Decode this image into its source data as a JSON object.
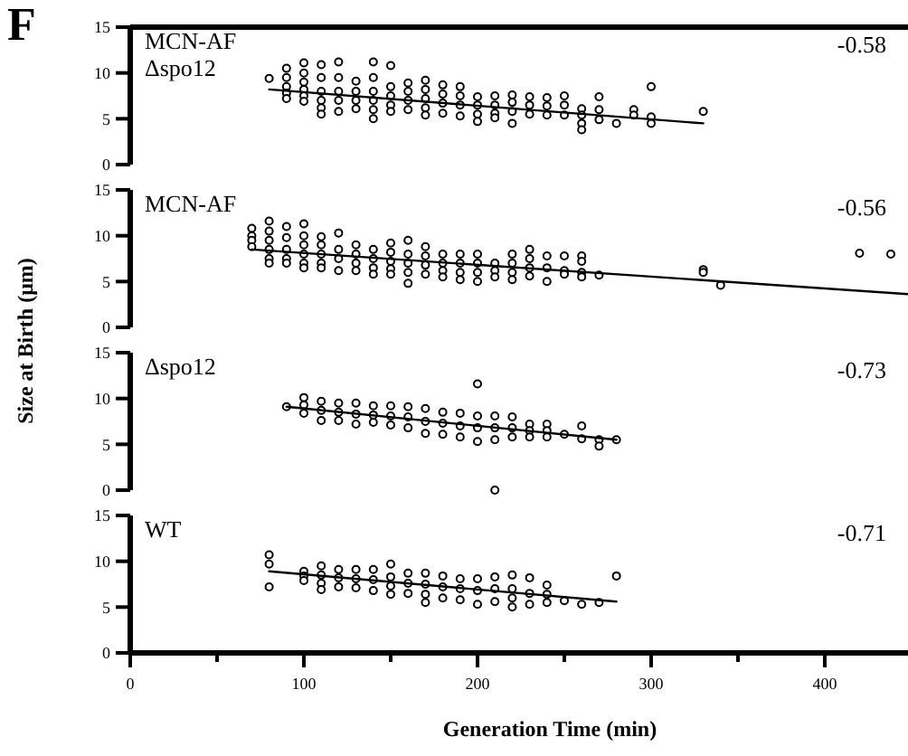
{
  "chart_data": [
    {
      "type": "scatter",
      "title": "F",
      "annotations": [
        "MCN-AF",
        "Δspo12",
        "-0.58"
      ],
      "ylabel": "Size at Birth (μm)",
      "xlim": [
        0,
        450
      ],
      "ylim": [
        0,
        15
      ],
      "yticks": [
        0,
        5,
        10,
        15
      ],
      "tick_labels": "y",
      "marker": "circle",
      "series": [
        {
          "color": "#000000",
          "x": [
            80,
            90,
            90,
            90,
            90,
            90,
            100,
            100,
            100,
            100,
            100,
            100,
            110,
            110,
            110,
            110,
            110,
            110,
            120,
            120,
            120,
            120,
            120,
            130,
            130,
            130,
            130,
            140,
            140,
            140,
            140,
            140,
            140,
            150,
            150,
            150,
            150,
            150,
            160,
            160,
            160,
            160,
            170,
            170,
            170,
            170,
            170,
            180,
            180,
            180,
            180,
            190,
            190,
            190,
            190,
            200,
            200,
            200,
            200,
            210,
            210,
            210,
            210,
            220,
            220,
            220,
            220,
            230,
            230,
            230,
            240,
            240,
            240,
            250,
            250,
            250,
            260,
            260,
            260,
            260,
            270,
            270,
            270,
            280,
            290,
            290,
            300,
            300,
            300,
            330
          ],
          "values": [
            9.4,
            10.5,
            9.5,
            8.5,
            7.8,
            7.2,
            11.1,
            10.0,
            9.0,
            8.2,
            7.5,
            6.9,
            10.9,
            9.5,
            8.0,
            7.0,
            6.2,
            5.5,
            11.2,
            9.5,
            8.0,
            7.0,
            5.8,
            9.1,
            8.0,
            7.0,
            6.1,
            11.2,
            9.5,
            8.0,
            7.0,
            6.0,
            5.0,
            10.8,
            8.5,
            7.5,
            6.5,
            5.8,
            8.9,
            8.0,
            7.0,
            6.0,
            9.2,
            8.2,
            7.2,
            6.2,
            5.4,
            8.7,
            7.7,
            6.7,
            5.6,
            8.5,
            7.5,
            6.5,
            5.3,
            7.4,
            6.5,
            5.5,
            4.7,
            7.5,
            6.5,
            5.6,
            5.1,
            7.6,
            6.8,
            5.8,
            4.5,
            7.4,
            6.5,
            5.5,
            7.3,
            6.4,
            5.4,
            7.5,
            6.5,
            5.4,
            6.1,
            5.4,
            4.5,
            3.8,
            7.4,
            6.0,
            4.9,
            4.5,
            6.0,
            5.4,
            8.5,
            5.2,
            4.5,
            5.8
          ]
        },
        {
          "type": "line",
          "marker": "none",
          "color": "#000000",
          "x": [
            80,
            330
          ],
          "values": [
            8.2,
            4.5
          ]
        }
      ]
    },
    {
      "type": "scatter",
      "annotations": [
        "MCN-AF",
        "-0.56"
      ],
      "xlim": [
        0,
        450
      ],
      "ylim": [
        0,
        15
      ],
      "yticks": [
        0,
        5,
        10,
        15
      ],
      "tick_labels": "y",
      "marker": "circle",
      "series": [
        {
          "color": "#000000",
          "x": [
            70,
            70,
            70,
            70,
            80,
            80,
            80,
            80,
            80,
            80,
            90,
            90,
            90,
            90,
            90,
            100,
            100,
            100,
            100,
            100,
            100,
            110,
            110,
            110,
            110,
            110,
            120,
            120,
            120,
            120,
            130,
            130,
            130,
            130,
            140,
            140,
            140,
            140,
            150,
            150,
            150,
            150,
            150,
            160,
            160,
            160,
            160,
            160,
            170,
            170,
            170,
            170,
            180,
            180,
            180,
            180,
            190,
            190,
            190,
            190,
            200,
            200,
            200,
            200,
            210,
            210,
            210,
            220,
            220,
            220,
            220,
            230,
            230,
            230,
            230,
            240,
            240,
            240,
            250,
            250,
            250,
            260,
            260,
            260,
            260,
            270,
            330,
            330,
            340,
            420,
            438
          ],
          "values": [
            10.8,
            10.0,
            9.5,
            8.8,
            11.6,
            10.5,
            9.5,
            8.5,
            7.5,
            7.0,
            11.0,
            9.8,
            8.5,
            7.5,
            7.0,
            11.3,
            10.0,
            9.0,
            8.0,
            7.0,
            6.5,
            9.9,
            9.0,
            8.0,
            7.0,
            6.5,
            10.3,
            8.5,
            7.5,
            6.2,
            9.0,
            8.0,
            7.0,
            6.2,
            8.5,
            7.5,
            6.5,
            5.8,
            9.2,
            8.2,
            7.2,
            6.4,
            5.8,
            9.5,
            8.0,
            7.0,
            6.0,
            4.8,
            8.8,
            7.8,
            6.8,
            5.8,
            8.0,
            7.0,
            6.2,
            5.5,
            8.0,
            7.0,
            6.0,
            5.2,
            8.0,
            7.0,
            6.0,
            5.0,
            7.0,
            6.2,
            5.5,
            8.0,
            7.0,
            6.0,
            5.2,
            8.5,
            7.5,
            6.5,
            5.6,
            7.8,
            6.5,
            5.0,
            7.8,
            6.2,
            5.8,
            7.8,
            7.2,
            6.0,
            5.5,
            5.7,
            6.3,
            6.0,
            4.6,
            8.1,
            8.0
          ]
        },
        {
          "type": "line",
          "marker": "none",
          "color": "#000000",
          "x": [
            70,
            450
          ],
          "values": [
            8.5,
            3.6
          ]
        }
      ]
    },
    {
      "type": "scatter",
      "annotations": [
        "Δspo12",
        "-0.73"
      ],
      "xlim": [
        0,
        450
      ],
      "ylim": [
        0,
        15
      ],
      "yticks": [
        0,
        5,
        10,
        15
      ],
      "tick_labels": "y",
      "marker": "circle",
      "series": [
        {
          "color": "#000000",
          "x": [
            90,
            100,
            100,
            100,
            110,
            110,
            110,
            120,
            120,
            120,
            130,
            130,
            130,
            140,
            140,
            140,
            150,
            150,
            150,
            160,
            160,
            160,
            170,
            170,
            170,
            180,
            180,
            180,
            190,
            190,
            190,
            200,
            200,
            200,
            200,
            210,
            210,
            210,
            210,
            220,
            220,
            220,
            230,
            230,
            230,
            240,
            240,
            240,
            250,
            260,
            260,
            270,
            270,
            280
          ],
          "values": [
            9.1,
            10.1,
            9.3,
            8.4,
            9.7,
            8.7,
            7.6,
            9.5,
            8.5,
            7.6,
            9.5,
            8.3,
            7.2,
            9.2,
            8.2,
            7.4,
            9.2,
            8.1,
            7.1,
            9.1,
            8.0,
            6.8,
            8.9,
            7.5,
            6.2,
            8.5,
            7.3,
            6.1,
            8.4,
            7.0,
            5.8,
            11.6,
            8.1,
            6.8,
            5.3,
            8.1,
            6.8,
            5.5,
            0,
            8.0,
            6.8,
            5.8,
            7.2,
            6.5,
            5.8,
            7.2,
            6.5,
            5.8,
            6.1,
            7.0,
            5.6,
            5.5,
            4.8,
            5.5
          ]
        },
        {
          "type": "line",
          "marker": "none",
          "color": "#000000",
          "x": [
            90,
            280
          ],
          "values": [
            9.1,
            5.5
          ]
        }
      ]
    },
    {
      "type": "scatter",
      "annotations": [
        "WT",
        "-0.71"
      ],
      "xlabel": "Generation Time (min)",
      "xlim": [
        0,
        450
      ],
      "ylim": [
        0,
        15
      ],
      "yticks": [
        0,
        5,
        10,
        15
      ],
      "xticks": [
        0,
        {
          "value": 50,
          "label": null
        },
        100,
        {
          "value": 150,
          "label": null
        },
        200,
        {
          "value": 250,
          "label": null
        },
        300,
        {
          "value": 350,
          "label": null
        },
        400
      ],
      "marker": "circle",
      "series": [
        {
          "color": "#000000",
          "x": [
            80,
            80,
            80,
            100,
            100,
            100,
            110,
            110,
            110,
            110,
            120,
            120,
            120,
            130,
            130,
            130,
            140,
            140,
            140,
            150,
            150,
            150,
            150,
            160,
            160,
            160,
            170,
            170,
            170,
            170,
            180,
            180,
            180,
            190,
            190,
            190,
            200,
            200,
            200,
            210,
            210,
            210,
            220,
            220,
            220,
            220,
            230,
            230,
            230,
            240,
            240,
            240,
            250,
            260,
            270,
            280
          ],
          "values": [
            10.7,
            9.7,
            7.2,
            8.9,
            8.4,
            7.9,
            9.5,
            8.5,
            7.6,
            6.9,
            9.1,
            8.2,
            7.2,
            9.1,
            8.1,
            7.1,
            9.1,
            8.0,
            6.8,
            9.7,
            8.3,
            7.3,
            6.4,
            8.7,
            7.6,
            6.5,
            8.7,
            7.5,
            6.4,
            5.5,
            8.4,
            7.2,
            6.0,
            8.1,
            7.0,
            5.8,
            8.1,
            6.8,
            5.3,
            8.3,
            7.0,
            5.6,
            8.5,
            7.0,
            6.0,
            5.0,
            8.2,
            6.5,
            5.3,
            7.4,
            6.4,
            5.5,
            5.7,
            5.3,
            5.5,
            8.4
          ]
        },
        {
          "type": "line",
          "marker": "none",
          "color": "#000000",
          "x": [
            80,
            280
          ],
          "values": [
            8.9,
            5.6
          ]
        }
      ]
    }
  ]
}
